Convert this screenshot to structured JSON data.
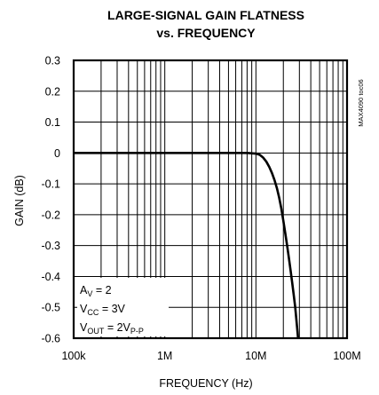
{
  "chart_data": {
    "type": "line",
    "title": "LARGE-SIGNAL GAIN FLATNESS",
    "subtitle": "vs. FREQUENCY",
    "xlabel": "FREQUENCY (Hz)",
    "ylabel": "GAIN (dB)",
    "x_scale": "log",
    "xlim": [
      100000,
      100000000
    ],
    "ylim": [
      -0.6,
      0.3
    ],
    "x_tick_labels": [
      "100k",
      "1M",
      "10M",
      "100M"
    ],
    "x_ticks": [
      100000,
      1000000,
      10000000,
      100000000
    ],
    "y_tick_labels": [
      "0.3",
      "0.2",
      "0.1",
      "0",
      "-0.1",
      "-0.2",
      "-0.3",
      "-0.4",
      "-0.5",
      "-0.6"
    ],
    "y_ticks": [
      0.3,
      0.2,
      0.1,
      0,
      -0.1,
      -0.2,
      -0.3,
      -0.4,
      -0.5,
      -0.6
    ],
    "grid": true,
    "watermark": "MAX4090 toc06",
    "conditions": {
      "av": {
        "main": "A",
        "sub": "V",
        "rest": " = 2"
      },
      "vcc": {
        "main": "V",
        "sub": "CC",
        "rest": " = 3V"
      },
      "vout": {
        "main": "V",
        "sub": "OUT",
        "rest": " = 2V",
        "sub2": "P-P"
      }
    },
    "series": [
      {
        "color": "#000000",
        "x": [
          100000,
          200000,
          500000,
          1000000,
          2000000,
          5000000,
          8000000,
          10000000,
          11000000,
          12000000,
          13000000,
          14000000,
          15000000,
          16000000,
          17000000,
          18000000,
          19000000,
          20000000,
          21000000,
          22000000,
          23000000,
          24000000,
          25000000,
          26000000,
          27000000,
          28000000,
          29000000
        ],
        "y": [
          0,
          0,
          0,
          0,
          0,
          0,
          0,
          -0.002,
          -0.006,
          -0.015,
          -0.028,
          -0.045,
          -0.065,
          -0.088,
          -0.114,
          -0.145,
          -0.18,
          -0.22,
          -0.26,
          -0.3,
          -0.34,
          -0.38,
          -0.42,
          -0.46,
          -0.5,
          -0.55,
          -0.6
        ]
      }
    ]
  }
}
